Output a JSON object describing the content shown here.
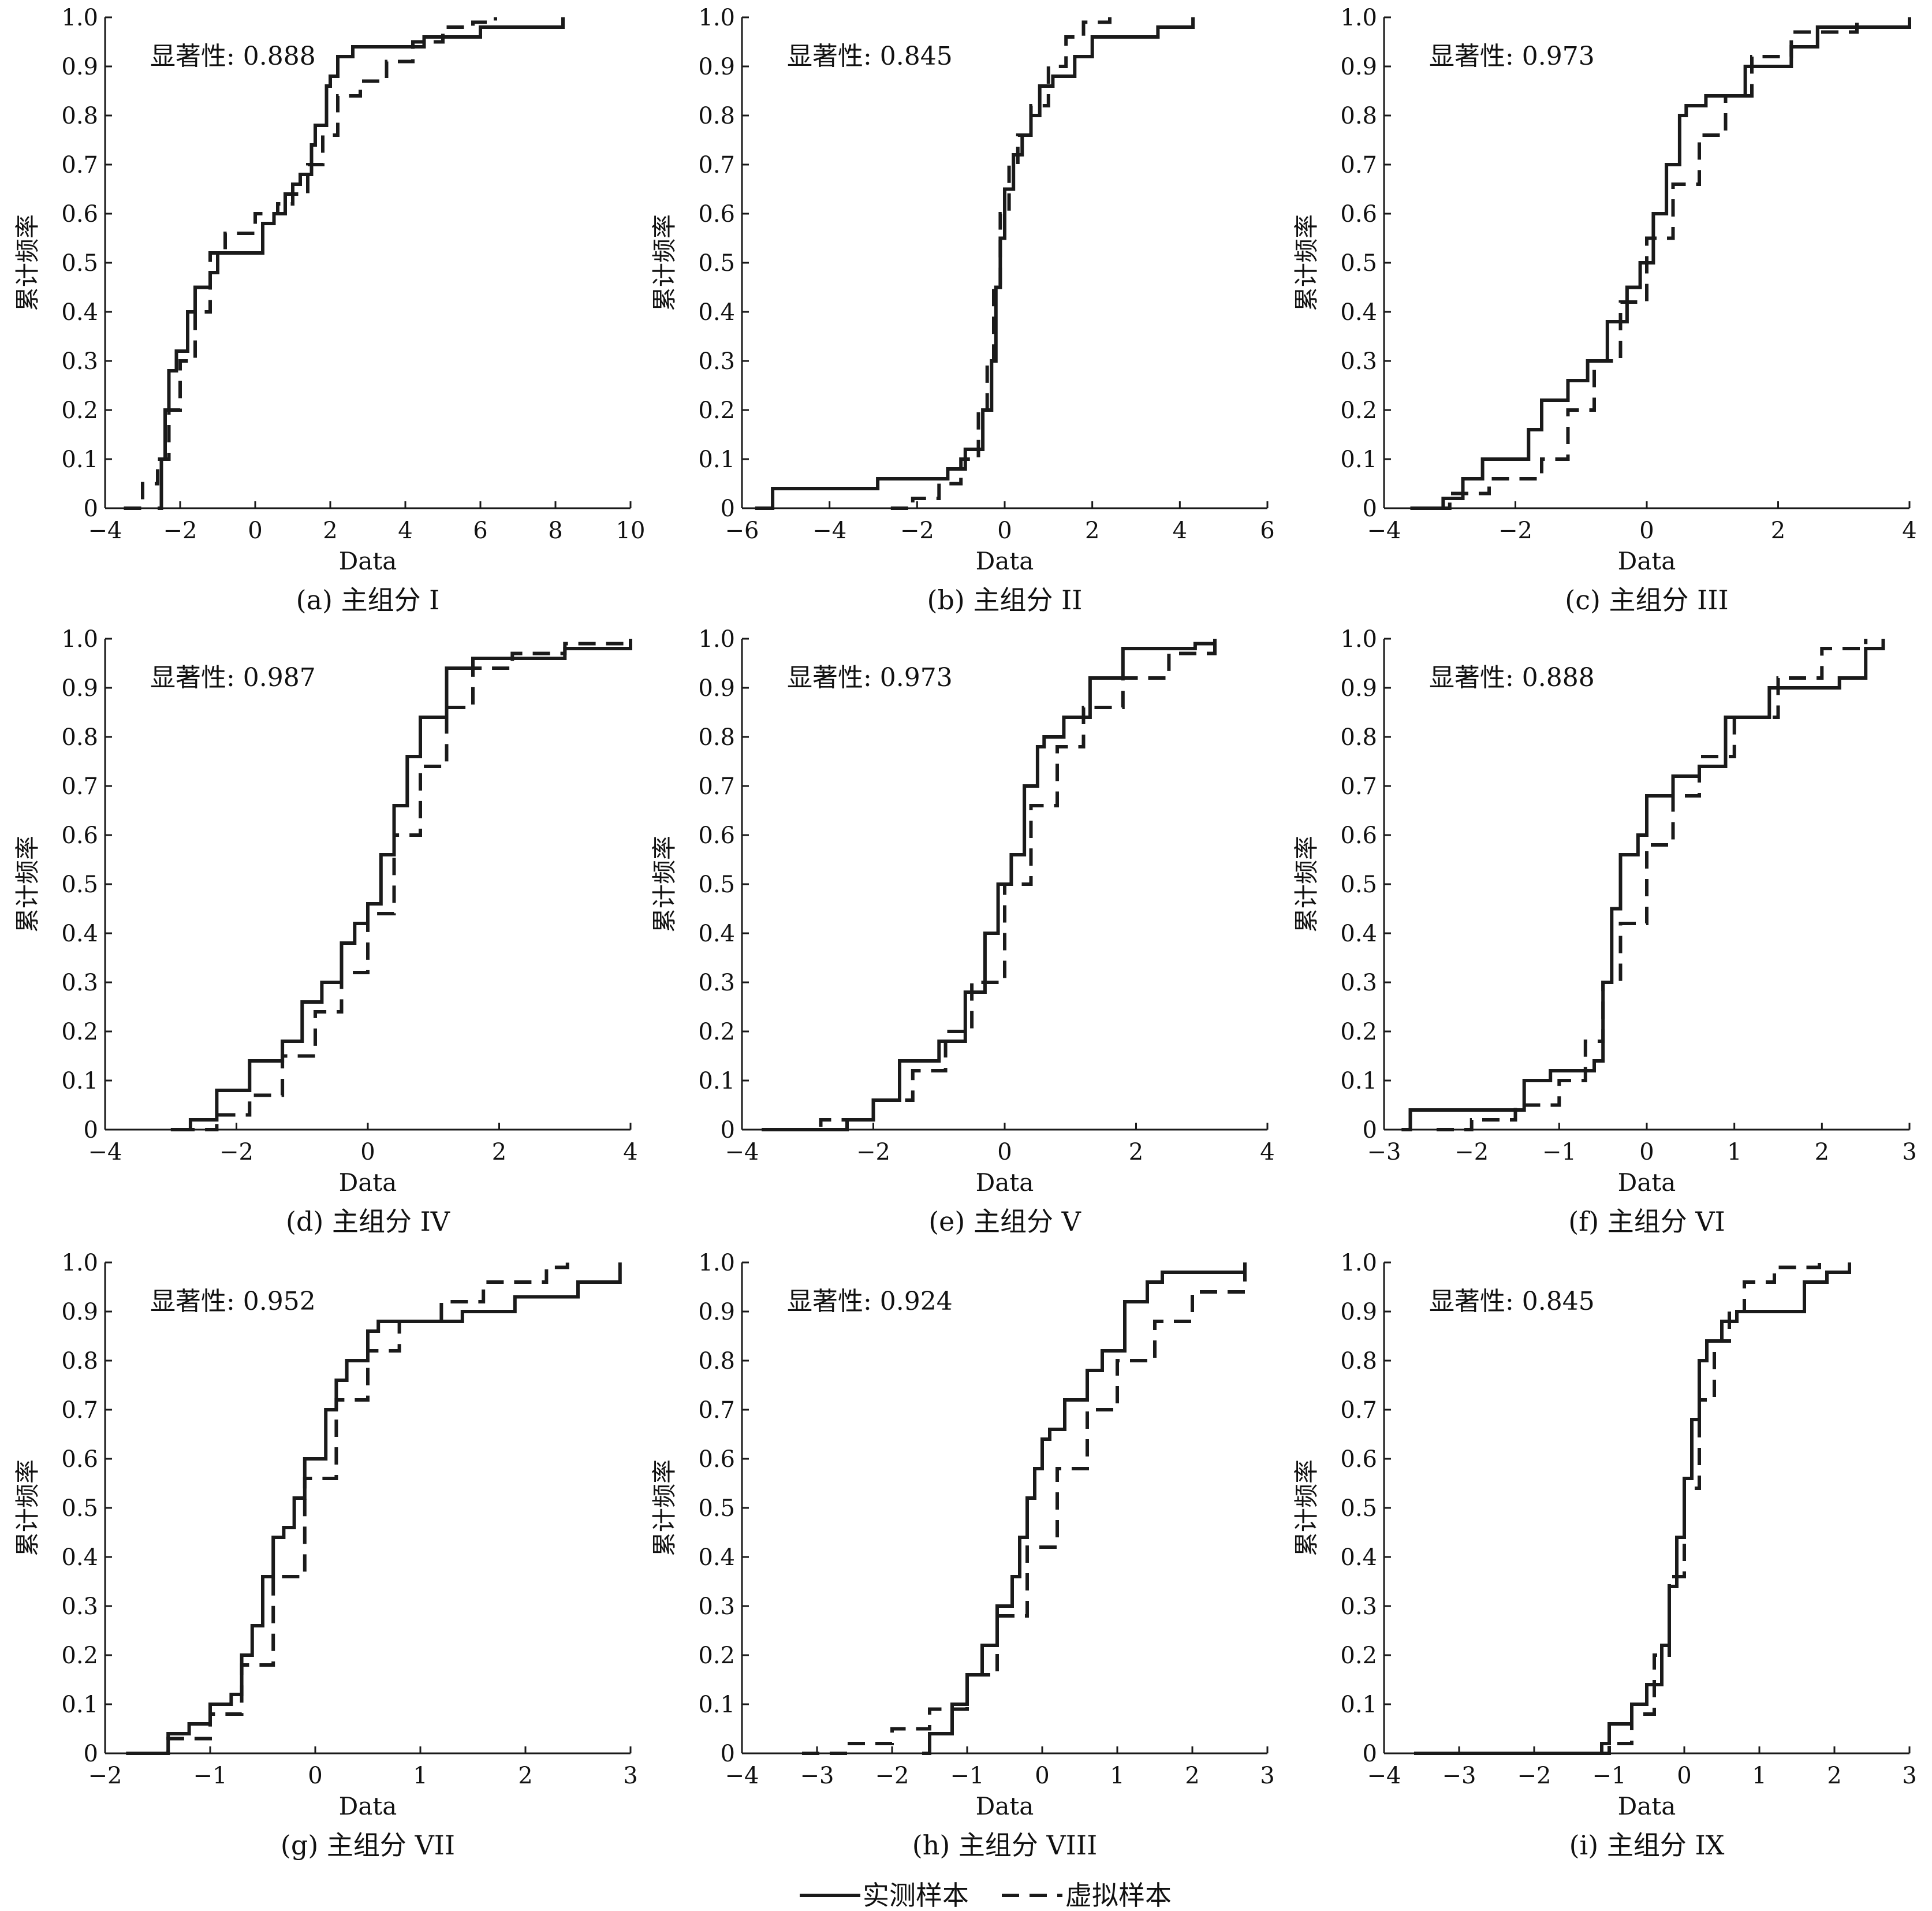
{
  "legend": {
    "measured": "实测样本",
    "virtual": "虚拟样本"
  },
  "colors": {
    "line": "#1a1a1a",
    "background": "#ffffff"
  },
  "chart_data": [
    {
      "type": "line",
      "caption": "(a) 主组分 I",
      "annotation": "显著性: 0.888",
      "xlabel": "Data",
      "ylabel": "累计频率",
      "xlim": [
        -4,
        10
      ],
      "ylim": [
        0,
        1
      ],
      "xticks": [
        -4,
        -2,
        0,
        2,
        4,
        6,
        8,
        10
      ],
      "yticks": [
        0,
        0.1,
        0.2,
        0.3,
        0.4,
        0.5,
        0.6,
        0.7,
        0.8,
        0.9,
        1.0
      ],
      "series": [
        {
          "name": "实测样本",
          "style": "solid",
          "x": [
            -2.6,
            -2.5,
            -2.4,
            -2.3,
            -2.1,
            -1.8,
            -1.6,
            -1.2,
            -1.0,
            0.2,
            0.5,
            0.8,
            1.0,
            1.2,
            1.5,
            1.6,
            1.9,
            2.0,
            2.2,
            2.6,
            3.5,
            4.5,
            6.0,
            8.2
          ],
          "y": [
            0.0,
            0.1,
            0.2,
            0.28,
            0.32,
            0.4,
            0.45,
            0.48,
            0.52,
            0.58,
            0.6,
            0.64,
            0.66,
            0.68,
            0.74,
            0.78,
            0.86,
            0.88,
            0.92,
            0.94,
            0.94,
            0.96,
            0.98,
            1.0
          ]
        },
        {
          "name": "虚拟样本",
          "style": "dashed",
          "x": [
            -3.5,
            -3.0,
            -2.6,
            -2.3,
            -2.0,
            -1.6,
            -1.2,
            -0.8,
            0.0,
            0.6,
            1.0,
            1.4,
            1.8,
            2.2,
            2.8,
            3.5,
            4.2,
            5.0,
            5.8,
            6.4
          ],
          "y": [
            0.0,
            0.05,
            0.1,
            0.2,
            0.3,
            0.4,
            0.52,
            0.56,
            0.6,
            0.62,
            0.64,
            0.7,
            0.76,
            0.84,
            0.87,
            0.91,
            0.95,
            0.98,
            0.99,
            1.0
          ]
        }
      ]
    },
    {
      "type": "line",
      "caption": "(b) 主组分 II",
      "annotation": "显著性: 0.845",
      "xlabel": "Data",
      "ylabel": "累计频率",
      "xlim": [
        -6,
        6
      ],
      "ylim": [
        0,
        1
      ],
      "xticks": [
        -6,
        -4,
        -2,
        0,
        2,
        4,
        6
      ],
      "yticks": [
        0,
        0.1,
        0.2,
        0.3,
        0.4,
        0.5,
        0.6,
        0.7,
        0.8,
        0.9,
        1.0
      ],
      "series": [
        {
          "name": "实测样本",
          "style": "solid",
          "x": [
            -5.7,
            -5.3,
            -2.9,
            -1.3,
            -0.9,
            -0.5,
            -0.3,
            -0.2,
            -0.1,
            0.0,
            0.2,
            0.4,
            0.6,
            0.8,
            1.1,
            1.6,
            2.0,
            3.5,
            4.3
          ],
          "y": [
            0.0,
            0.04,
            0.06,
            0.08,
            0.12,
            0.2,
            0.3,
            0.45,
            0.55,
            0.65,
            0.72,
            0.76,
            0.8,
            0.86,
            0.88,
            0.92,
            0.96,
            0.98,
            1.0
          ]
        },
        {
          "name": "虚拟样本",
          "style": "dashed",
          "x": [
            -2.6,
            -2.1,
            -1.5,
            -1.0,
            -0.6,
            -0.4,
            -0.25,
            -0.1,
            0.1,
            0.3,
            0.6,
            1.0,
            1.4,
            1.8,
            2.4
          ],
          "y": [
            0.0,
            0.02,
            0.05,
            0.1,
            0.2,
            0.3,
            0.45,
            0.6,
            0.7,
            0.76,
            0.82,
            0.9,
            0.96,
            0.99,
            1.0
          ]
        }
      ]
    },
    {
      "type": "line",
      "caption": "(c) 主组分 III",
      "annotation": "显著性: 0.973",
      "xlabel": "Data",
      "ylabel": "累计频率",
      "xlim": [
        -4,
        4
      ],
      "ylim": [
        0,
        1
      ],
      "xticks": [
        -4,
        -2,
        0,
        2,
        4
      ],
      "yticks": [
        0,
        0.1,
        0.2,
        0.3,
        0.4,
        0.5,
        0.6,
        0.7,
        0.8,
        0.9,
        1.0
      ],
      "series": [
        {
          "name": "实测样本",
          "style": "solid",
          "x": [
            -3.5,
            -3.1,
            -2.8,
            -2.5,
            -1.8,
            -1.6,
            -1.2,
            -0.9,
            -0.6,
            -0.3,
            -0.1,
            0.1,
            0.3,
            0.5,
            0.6,
            0.9,
            1.5,
            2.2,
            2.6,
            4.0
          ],
          "y": [
            0.0,
            0.02,
            0.06,
            0.1,
            0.16,
            0.22,
            0.26,
            0.3,
            0.38,
            0.45,
            0.5,
            0.6,
            0.7,
            0.8,
            0.82,
            0.84,
            0.9,
            0.94,
            0.98,
            1.0
          ]
        },
        {
          "name": "虚拟样本",
          "style": "dashed",
          "x": [
            -3.6,
            -3.0,
            -2.4,
            -1.6,
            -1.2,
            -0.8,
            -0.4,
            0.0,
            0.4,
            0.8,
            1.2,
            1.6,
            2.2,
            3.2
          ],
          "y": [
            0.0,
            0.03,
            0.06,
            0.1,
            0.2,
            0.3,
            0.42,
            0.55,
            0.66,
            0.76,
            0.84,
            0.92,
            0.97,
            1.0
          ]
        }
      ]
    },
    {
      "type": "line",
      "caption": "(d) 主组分 IV",
      "annotation": "显著性: 0.987",
      "xlabel": "Data",
      "ylabel": "累计频率",
      "xlim": [
        -4,
        4
      ],
      "ylim": [
        0,
        1
      ],
      "xticks": [
        -4,
        -2,
        0,
        2,
        4
      ],
      "yticks": [
        0,
        0.1,
        0.2,
        0.3,
        0.4,
        0.5,
        0.6,
        0.7,
        0.8,
        0.9,
        1.0
      ],
      "series": [
        {
          "name": "实测样本",
          "style": "solid",
          "x": [
            -3.0,
            -2.7,
            -2.3,
            -1.8,
            -1.3,
            -1.0,
            -0.7,
            -0.4,
            -0.2,
            0.0,
            0.2,
            0.4,
            0.6,
            0.8,
            1.2,
            1.6,
            3.0,
            4.0
          ],
          "y": [
            0.0,
            0.02,
            0.08,
            0.14,
            0.18,
            0.26,
            0.3,
            0.38,
            0.42,
            0.46,
            0.56,
            0.66,
            0.76,
            0.84,
            0.94,
            0.96,
            0.98,
            1.0
          ]
        },
        {
          "name": "虚拟样本",
          "style": "dashed",
          "x": [
            -2.9,
            -2.3,
            -1.8,
            -1.3,
            -0.8,
            -0.4,
            0.0,
            0.4,
            0.8,
            1.2,
            1.6,
            2.2,
            3.0,
            4.0
          ],
          "y": [
            0.0,
            0.03,
            0.07,
            0.15,
            0.24,
            0.32,
            0.44,
            0.6,
            0.74,
            0.86,
            0.94,
            0.97,
            0.99,
            1.0
          ]
        }
      ]
    },
    {
      "type": "line",
      "caption": "(e) 主组分 V",
      "annotation": "显著性: 0.973",
      "xlabel": "Data",
      "ylabel": "累计频率",
      "xlim": [
        -4,
        4
      ],
      "ylim": [
        0,
        1
      ],
      "xticks": [
        -4,
        -2,
        0,
        2,
        4
      ],
      "yticks": [
        0,
        0.1,
        0.2,
        0.3,
        0.4,
        0.5,
        0.6,
        0.7,
        0.8,
        0.9,
        1.0
      ],
      "series": [
        {
          "name": "实测样本",
          "style": "solid",
          "x": [
            -3.7,
            -2.4,
            -2.0,
            -1.6,
            -1.0,
            -0.6,
            -0.3,
            -0.1,
            0.1,
            0.3,
            0.5,
            0.6,
            0.9,
            1.3,
            1.8,
            2.9,
            3.2
          ],
          "y": [
            0.0,
            0.02,
            0.06,
            0.14,
            0.18,
            0.28,
            0.4,
            0.5,
            0.56,
            0.7,
            0.78,
            0.8,
            0.84,
            0.92,
            0.98,
            0.99,
            1.0
          ]
        },
        {
          "name": "虚拟样本",
          "style": "dashed",
          "x": [
            -3.6,
            -2.8,
            -2.0,
            -1.4,
            -0.9,
            -0.5,
            0.0,
            0.4,
            0.8,
            1.2,
            1.8,
            2.5,
            3.2
          ],
          "y": [
            0.0,
            0.02,
            0.06,
            0.12,
            0.2,
            0.3,
            0.5,
            0.66,
            0.78,
            0.86,
            0.92,
            0.97,
            1.0
          ]
        }
      ]
    },
    {
      "type": "line",
      "caption": "(f) 主组分 VI",
      "annotation": "显著性: 0.888",
      "xlabel": "Data",
      "ylabel": "累计频率",
      "xlim": [
        -3,
        3
      ],
      "ylim": [
        0,
        1
      ],
      "xticks": [
        -3,
        -2,
        -1,
        0,
        1,
        2,
        3
      ],
      "yticks": [
        0,
        0.1,
        0.2,
        0.3,
        0.4,
        0.5,
        0.6,
        0.7,
        0.8,
        0.9,
        1.0
      ],
      "series": [
        {
          "name": "实测样本",
          "style": "solid",
          "x": [
            -2.8,
            -2.7,
            -1.6,
            -1.4,
            -1.1,
            -0.6,
            -0.5,
            -0.4,
            -0.3,
            -0.1,
            0.0,
            0.3,
            0.6,
            0.9,
            1.4,
            2.2,
            2.5,
            2.7
          ],
          "y": [
            0.0,
            0.04,
            0.04,
            0.1,
            0.12,
            0.14,
            0.3,
            0.45,
            0.56,
            0.6,
            0.68,
            0.72,
            0.74,
            0.84,
            0.9,
            0.92,
            0.98,
            1.0
          ]
        },
        {
          "name": "虚拟样本",
          "style": "dashed",
          "x": [
            -2.4,
            -2.0,
            -1.5,
            -1.0,
            -0.7,
            -0.5,
            -0.3,
            0.0,
            0.3,
            0.6,
            1.0,
            1.5,
            2.0,
            2.5
          ],
          "y": [
            0.0,
            0.02,
            0.05,
            0.1,
            0.18,
            0.3,
            0.42,
            0.58,
            0.68,
            0.76,
            0.84,
            0.92,
            0.98,
            1.0
          ]
        }
      ]
    },
    {
      "type": "line",
      "caption": "(g) 主组分 VII",
      "annotation": "显著性: 0.952",
      "xlabel": "Data",
      "ylabel": "累计频率",
      "xlim": [
        -2,
        3
      ],
      "ylim": [
        0,
        1
      ],
      "xticks": [
        -2,
        -1,
        0,
        1,
        2,
        3
      ],
      "yticks": [
        0,
        0.1,
        0.2,
        0.3,
        0.4,
        0.5,
        0.6,
        0.7,
        0.8,
        0.9,
        1.0
      ],
      "series": [
        {
          "name": "实测样本",
          "style": "solid",
          "x": [
            -1.8,
            -1.4,
            -1.2,
            -1.0,
            -0.8,
            -0.7,
            -0.6,
            -0.5,
            -0.4,
            -0.3,
            -0.2,
            -0.1,
            0.1,
            0.2,
            0.3,
            0.5,
            0.6,
            1.4,
            1.9,
            2.5,
            2.9
          ],
          "y": [
            0.0,
            0.04,
            0.06,
            0.1,
            0.12,
            0.2,
            0.26,
            0.36,
            0.44,
            0.46,
            0.52,
            0.6,
            0.7,
            0.76,
            0.8,
            0.86,
            0.88,
            0.9,
            0.93,
            0.96,
            1.0
          ]
        },
        {
          "name": "虚拟样本",
          "style": "dashed",
          "x": [
            -1.8,
            -1.4,
            -1.0,
            -0.7,
            -0.4,
            -0.1,
            0.2,
            0.5,
            0.8,
            1.2,
            1.6,
            2.2,
            2.4
          ],
          "y": [
            0.0,
            0.03,
            0.08,
            0.18,
            0.36,
            0.56,
            0.72,
            0.82,
            0.88,
            0.92,
            0.96,
            0.99,
            1.0
          ]
        }
      ]
    },
    {
      "type": "line",
      "caption": "(h) 主组分 VIII",
      "annotation": "显著性: 0.924",
      "xlabel": "Data",
      "ylabel": "累计频率",
      "xlim": [
        -4,
        3
      ],
      "ylim": [
        0,
        1
      ],
      "xticks": [
        -4,
        -3,
        -2,
        -1,
        0,
        1,
        2,
        3
      ],
      "yticks": [
        0,
        0.1,
        0.2,
        0.3,
        0.4,
        0.5,
        0.6,
        0.7,
        0.8,
        0.9,
        1.0
      ],
      "series": [
        {
          "name": "实测样本",
          "style": "solid",
          "x": [
            -1.6,
            -1.5,
            -1.2,
            -1.0,
            -0.8,
            -0.6,
            -0.4,
            -0.3,
            -0.2,
            -0.1,
            0.0,
            0.1,
            0.3,
            0.6,
            0.8,
            1.1,
            1.4,
            1.6,
            2.7
          ],
          "y": [
            0.0,
            0.04,
            0.1,
            0.16,
            0.22,
            0.3,
            0.36,
            0.44,
            0.52,
            0.58,
            0.64,
            0.66,
            0.72,
            0.78,
            0.82,
            0.92,
            0.96,
            0.98,
            1.0
          ]
        },
        {
          "name": "虚拟样本",
          "style": "dashed",
          "x": [
            -3.2,
            -2.6,
            -2.0,
            -1.5,
            -1.0,
            -0.6,
            -0.2,
            0.2,
            0.6,
            1.0,
            1.5,
            2.0,
            2.7
          ],
          "y": [
            0.0,
            0.02,
            0.05,
            0.09,
            0.16,
            0.28,
            0.42,
            0.58,
            0.7,
            0.8,
            0.88,
            0.94,
            1.0
          ]
        }
      ]
    },
    {
      "type": "line",
      "caption": "(i) 主组分 IX",
      "annotation": "显著性: 0.845",
      "xlabel": "Data",
      "ylabel": "累计频率",
      "xlim": [
        -4,
        3
      ],
      "ylim": [
        0,
        1
      ],
      "xticks": [
        -4,
        -3,
        -2,
        -1,
        0,
        1,
        2,
        3
      ],
      "yticks": [
        0,
        0.1,
        0.2,
        0.3,
        0.4,
        0.5,
        0.6,
        0.7,
        0.8,
        0.9,
        1.0
      ],
      "series": [
        {
          "name": "实测样本",
          "style": "solid",
          "x": [
            -3.6,
            -1.1,
            -1.0,
            -0.7,
            -0.5,
            -0.3,
            -0.2,
            -0.1,
            0.0,
            0.1,
            0.2,
            0.3,
            0.5,
            0.7,
            1.6,
            1.9,
            2.2
          ],
          "y": [
            0.0,
            0.02,
            0.06,
            0.1,
            0.14,
            0.22,
            0.34,
            0.44,
            0.56,
            0.68,
            0.8,
            0.84,
            0.88,
            0.9,
            0.96,
            0.98,
            1.0
          ]
        },
        {
          "name": "虚拟样本",
          "style": "dashed",
          "x": [
            -1.5,
            -1.0,
            -0.7,
            -0.4,
            -0.2,
            0.0,
            0.2,
            0.4,
            0.6,
            0.8,
            1.2,
            1.8
          ],
          "y": [
            0.0,
            0.02,
            0.08,
            0.2,
            0.36,
            0.54,
            0.72,
            0.84,
            0.9,
            0.96,
            0.99,
            1.0
          ]
        }
      ]
    }
  ]
}
